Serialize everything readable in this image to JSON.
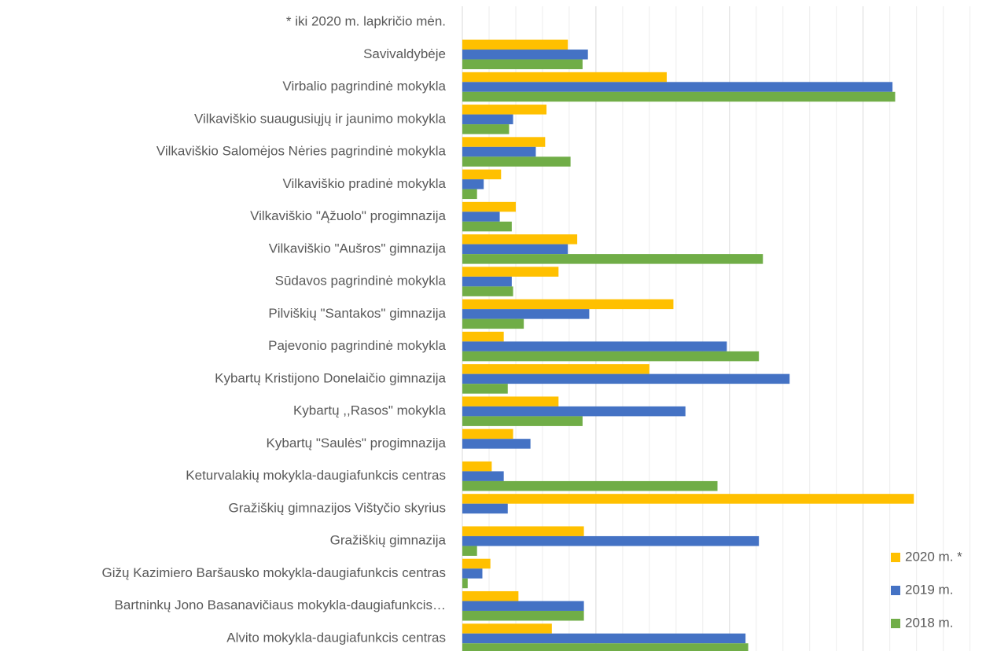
{
  "chart_data": {
    "type": "hbar",
    "categories": [
      "* iki 2020 m. lapkričio mėn.",
      "Savivaldybėje",
      "Virbalio pagrindinė mokykla",
      "Vilkaviškio suaugusiųjų ir jaunimo mokykla",
      "Vilkaviškio Salomėjos Nėries pagrindinė mokykla",
      "Vilkaviškio pradinė mokykla ",
      "Vilkaviškio \"Ąžuolo\" progimnazija",
      "Vilkaviškio \"Aušros\" gimnazija",
      "Sūdavos pagrindinė mokykla",
      "Pilviškių \"Santakos\" gimnazija",
      "Pajevonio pagrindinė mokykla",
      "Kybartų Kristijono Donelaičio gimnazija",
      "Kybartų ,,Rasos\" mokykla",
      "Kybartų \"Saulės\" progimnazija",
      "Keturvalakių mokykla-daugiafunkcis centras",
      "Gražiškių gimnazijos Vištyčio skyrius",
      "Gražiškių gimnazija",
      "Gižų Kazimiero Baršausko mokykla-daugiafunkcis centras",
      "Bartninkų Jono Basanavičiaus mokykla-daugiafunkcis…",
      "Alvito mokykla-daugiafunkcis centras"
    ],
    "series": [
      {
        "name": "2020 m. *",
        "color": "#FFC000",
        "values": [
          null,
          0.79,
          1.53,
          0.63,
          0.62,
          0.29,
          0.4,
          0.86,
          0.72,
          1.58,
          0.31,
          1.4,
          0.72,
          0.38,
          0.22,
          3.38,
          0.91,
          0.21,
          0.42,
          0.67
        ]
      },
      {
        "name": "2019 m.",
        "color": "#4472C4",
        "values": [
          null,
          0.94,
          3.22,
          0.38,
          0.55,
          0.16,
          0.28,
          0.79,
          0.37,
          0.95,
          1.98,
          2.45,
          1.67,
          0.51,
          0.31,
          0.34,
          2.22,
          0.15,
          0.91,
          2.12
        ]
      },
      {
        "name": "2018 m.",
        "color": "#70AD47",
        "values": [
          null,
          0.9,
          3.24,
          0.35,
          0.81,
          0.11,
          0.37,
          2.25,
          0.38,
          0.46,
          2.22,
          0.34,
          0.9,
          null,
          1.91,
          null,
          0.11,
          0.04,
          0.91,
          2.14
        ]
      }
    ],
    "xlim": [
      0,
      3.92
    ],
    "xticks": [
      0,
      1,
      2,
      3
    ],
    "minor_xticks": [
      0.2,
      0.4,
      0.6,
      0.8,
      1.2,
      1.4,
      1.6,
      1.8,
      2.2,
      2.4,
      2.6,
      2.8,
      3.2,
      3.4,
      3.6,
      3.8
    ],
    "grid": true,
    "legend": "lower right"
  }
}
